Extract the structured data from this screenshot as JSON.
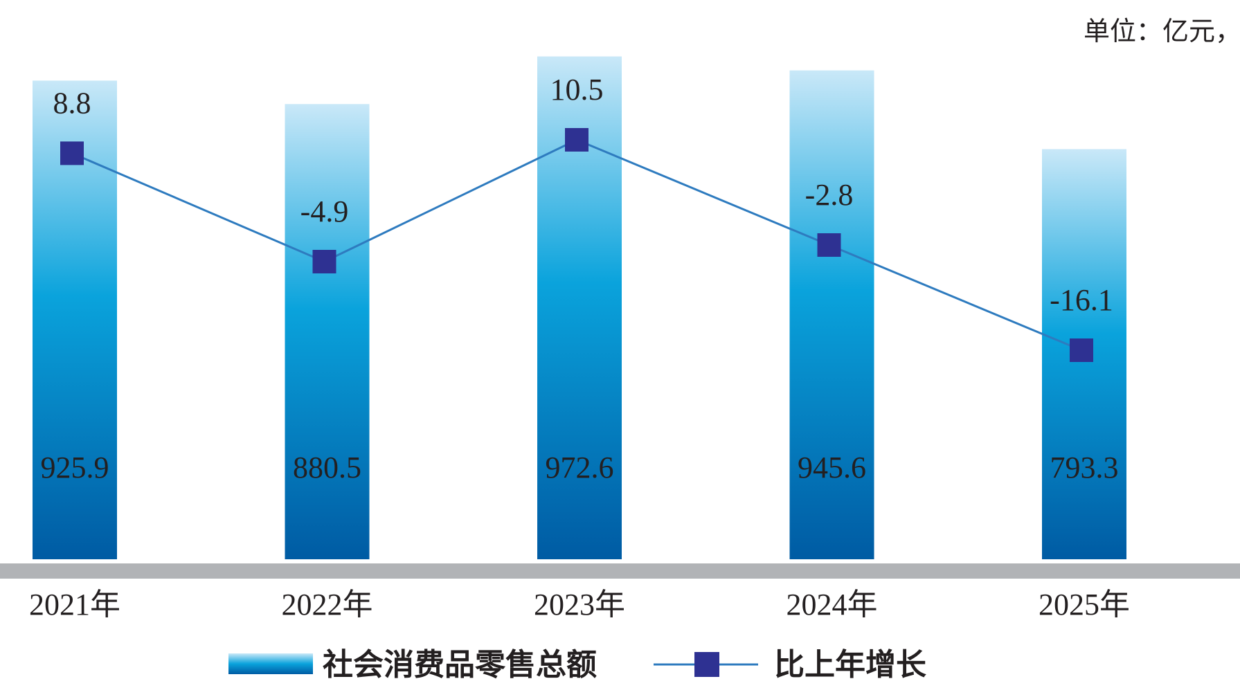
{
  "unit_label": "单位：亿元，%",
  "chart_data": {
    "type": "bar",
    "categories": [
      "2021年",
      "2022年",
      "2023年",
      "2024年",
      "2025年"
    ],
    "series": [
      {
        "name": "社会消费品零售总额",
        "type": "bar",
        "values": [
          925.9,
          880.5,
          972.6,
          945.6,
          793.3
        ],
        "value_labels": [
          "925.9",
          "880.5",
          "972.6",
          "945.6",
          "793.3"
        ]
      },
      {
        "name": "比上年增长",
        "type": "line",
        "values": [
          8.8,
          -4.9,
          10.5,
          -2.8,
          -16.1
        ],
        "value_labels": [
          "8.8",
          "-4.9",
          "10.5",
          "-2.8",
          "-16.1"
        ]
      }
    ],
    "colors": {
      "bar_top": "#c9e8f8",
      "bar_mid": "#0aa3dc",
      "bar_bottom": "#005ba3",
      "line": "#2e7bbf",
      "marker": "#2e3192",
      "axis": "#b1b3b6"
    },
    "legend_position": "bottom"
  }
}
